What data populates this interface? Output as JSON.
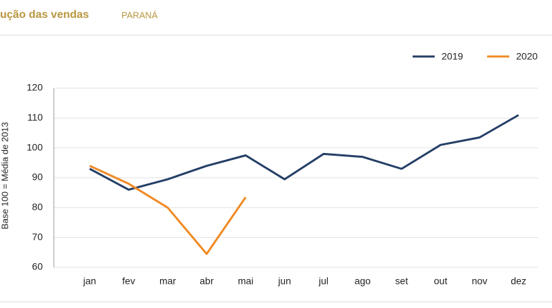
{
  "chart_data": {
    "type": "line",
    "title": "ução das vendas",
    "subtitle": "PARANÁ",
    "y_label": "Base 100 = Média de 2013",
    "categories": [
      "jan",
      "fev",
      "mar",
      "abr",
      "mai",
      "jun",
      "jul",
      "ago",
      "set",
      "out",
      "nov",
      "dez"
    ],
    "series": [
      {
        "name": "2019",
        "color": "#253f66",
        "values": [
          93,
          86,
          89.5,
          94,
          97.5,
          89.5,
          98,
          97,
          93,
          101,
          103.5,
          111
        ]
      },
      {
        "name": "2020",
        "color": "#f08a24",
        "values": [
          94,
          88,
          80,
          64.5,
          83.5,
          null,
          null,
          null,
          null,
          null,
          null,
          null
        ]
      }
    ],
    "ylim": [
      60,
      120
    ],
    "yticks": [
      60,
      70,
      80,
      90,
      100,
      110,
      120
    ],
    "grid": true,
    "legend": "top-right"
  }
}
